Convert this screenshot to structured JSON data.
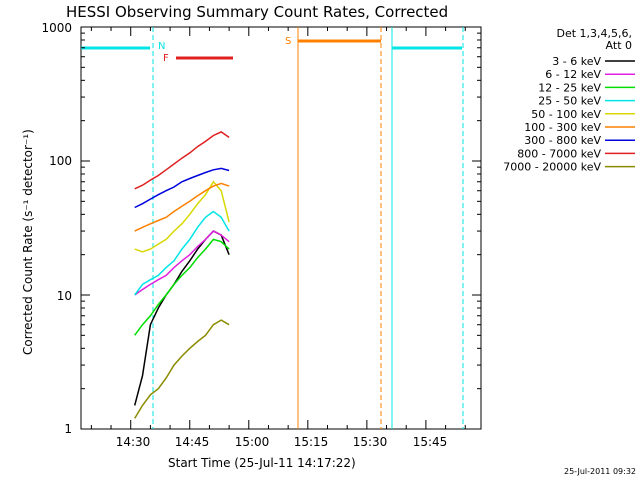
{
  "chart_data": {
    "type": "line",
    "title": "HESSI Observing Summary Count Rates, Corrected",
    "xlabel": "Start Time (25-Jul-11 14:17:22)",
    "ylabel": "Corrected Count Rate (s⁻¹ detector⁻¹)",
    "y_scale": "log",
    "ylim": [
      1,
      1000
    ],
    "xlim": [
      "14:17:22",
      "15:59:00"
    ],
    "x_tick_labels": [
      "14:30",
      "14:45",
      "15:00",
      "15:15",
      "15:30",
      "15:45"
    ],
    "y_tick_labels": [
      "1",
      "10",
      "100",
      "1000"
    ],
    "grid": false,
    "legend_header": [
      "Det 1,3,4,5,6,",
      "Att 0"
    ],
    "legend_position": "right",
    "series": [
      {
        "name": "3 - 6 keV",
        "color": "#000000",
        "x": [
          "14:31",
          "14:33",
          "14:35",
          "14:37",
          "14:39",
          "14:41",
          "14:43",
          "14:45",
          "14:47",
          "14:49",
          "14:51",
          "14:53",
          "14:55"
        ],
        "values": [
          1.5,
          2.5,
          6,
          8,
          10,
          12,
          15,
          18,
          22,
          26,
          30,
          28,
          20
        ]
      },
      {
        "name": "6 - 12 keV",
        "color": "#e020e0",
        "x": [
          "14:31",
          "14:33",
          "14:35",
          "14:37",
          "14:39",
          "14:41",
          "14:43",
          "14:45",
          "14:47",
          "14:49",
          "14:51",
          "14:53",
          "14:55"
        ],
        "values": [
          10,
          11,
          12,
          13,
          14,
          16,
          18,
          20,
          23,
          26,
          30,
          28,
          25
        ]
      },
      {
        "name": "12 - 25 keV",
        "color": "#00dd00",
        "x": [
          "14:31",
          "14:33",
          "14:35",
          "14:37",
          "14:39",
          "14:41",
          "14:43",
          "14:45",
          "14:47",
          "14:49",
          "14:51",
          "14:53",
          "14:55"
        ],
        "values": [
          5,
          6,
          7,
          8.5,
          10,
          12,
          14,
          16,
          19,
          22,
          26,
          25,
          22
        ]
      },
      {
        "name": "25 - 50 keV",
        "color": "#00e5e5",
        "x": [
          "14:31",
          "14:33",
          "14:35",
          "14:37",
          "14:39",
          "14:41",
          "14:43",
          "14:45",
          "14:47",
          "14:49",
          "14:51",
          "14:53",
          "14:55"
        ],
        "values": [
          10,
          12,
          13,
          14,
          16,
          18,
          22,
          26,
          32,
          38,
          42,
          38,
          30
        ]
      },
      {
        "name": "50 - 100 keV",
        "color": "#d8d800",
        "x": [
          "14:31",
          "14:33",
          "14:35",
          "14:37",
          "14:39",
          "14:41",
          "14:43",
          "14:45",
          "14:47",
          "14:49",
          "14:51",
          "14:53",
          "14:55"
        ],
        "values": [
          22,
          21,
          22,
          24,
          26,
          30,
          34,
          40,
          48,
          56,
          70,
          60,
          35
        ]
      },
      {
        "name": "100 - 300 keV",
        "color": "#ff8000",
        "x": [
          "14:31",
          "14:33",
          "14:35",
          "14:37",
          "14:39",
          "14:41",
          "14:43",
          "14:45",
          "14:47",
          "14:49",
          "14:51",
          "14:53",
          "14:55"
        ],
        "values": [
          30,
          32,
          34,
          36,
          38,
          42,
          46,
          50,
          55,
          60,
          65,
          68,
          65
        ]
      },
      {
        "name": "300 - 800 keV",
        "color": "#0000dd",
        "x": [
          "14:31",
          "14:33",
          "14:35",
          "14:37",
          "14:39",
          "14:41",
          "14:43",
          "14:45",
          "14:47",
          "14:49",
          "14:51",
          "14:53",
          "14:55"
        ],
        "values": [
          45,
          48,
          52,
          56,
          60,
          64,
          70,
          74,
          78,
          82,
          86,
          88,
          85
        ]
      },
      {
        "name": "800 - 7000 keV",
        "color": "#e02020",
        "x": [
          "14:31",
          "14:33",
          "14:35",
          "14:37",
          "14:39",
          "14:41",
          "14:43",
          "14:45",
          "14:47",
          "14:49",
          "14:51",
          "14:53",
          "14:55"
        ],
        "values": [
          62,
          66,
          72,
          78,
          86,
          95,
          105,
          115,
          128,
          140,
          155,
          165,
          150
        ]
      },
      {
        "name": "7000 - 20000 keV",
        "color": "#8b8b00",
        "x": [
          "14:31",
          "14:33",
          "14:35",
          "14:37",
          "14:39",
          "14:41",
          "14:43",
          "14:45",
          "14:47",
          "14:49",
          "14:51",
          "14:53",
          "14:55"
        ],
        "values": [
          1.2,
          1.5,
          1.8,
          2,
          2.4,
          3,
          3.5,
          4,
          4.5,
          5,
          6,
          6.5,
          6
        ]
      }
    ],
    "annotations": [
      {
        "label": "N",
        "color": "#00e5e5"
      },
      {
        "label": "F",
        "color": "#e02020"
      },
      {
        "label": "S",
        "color": "#ff8000"
      }
    ],
    "footer_timestamp": "25-Jul-2011 09:32"
  }
}
